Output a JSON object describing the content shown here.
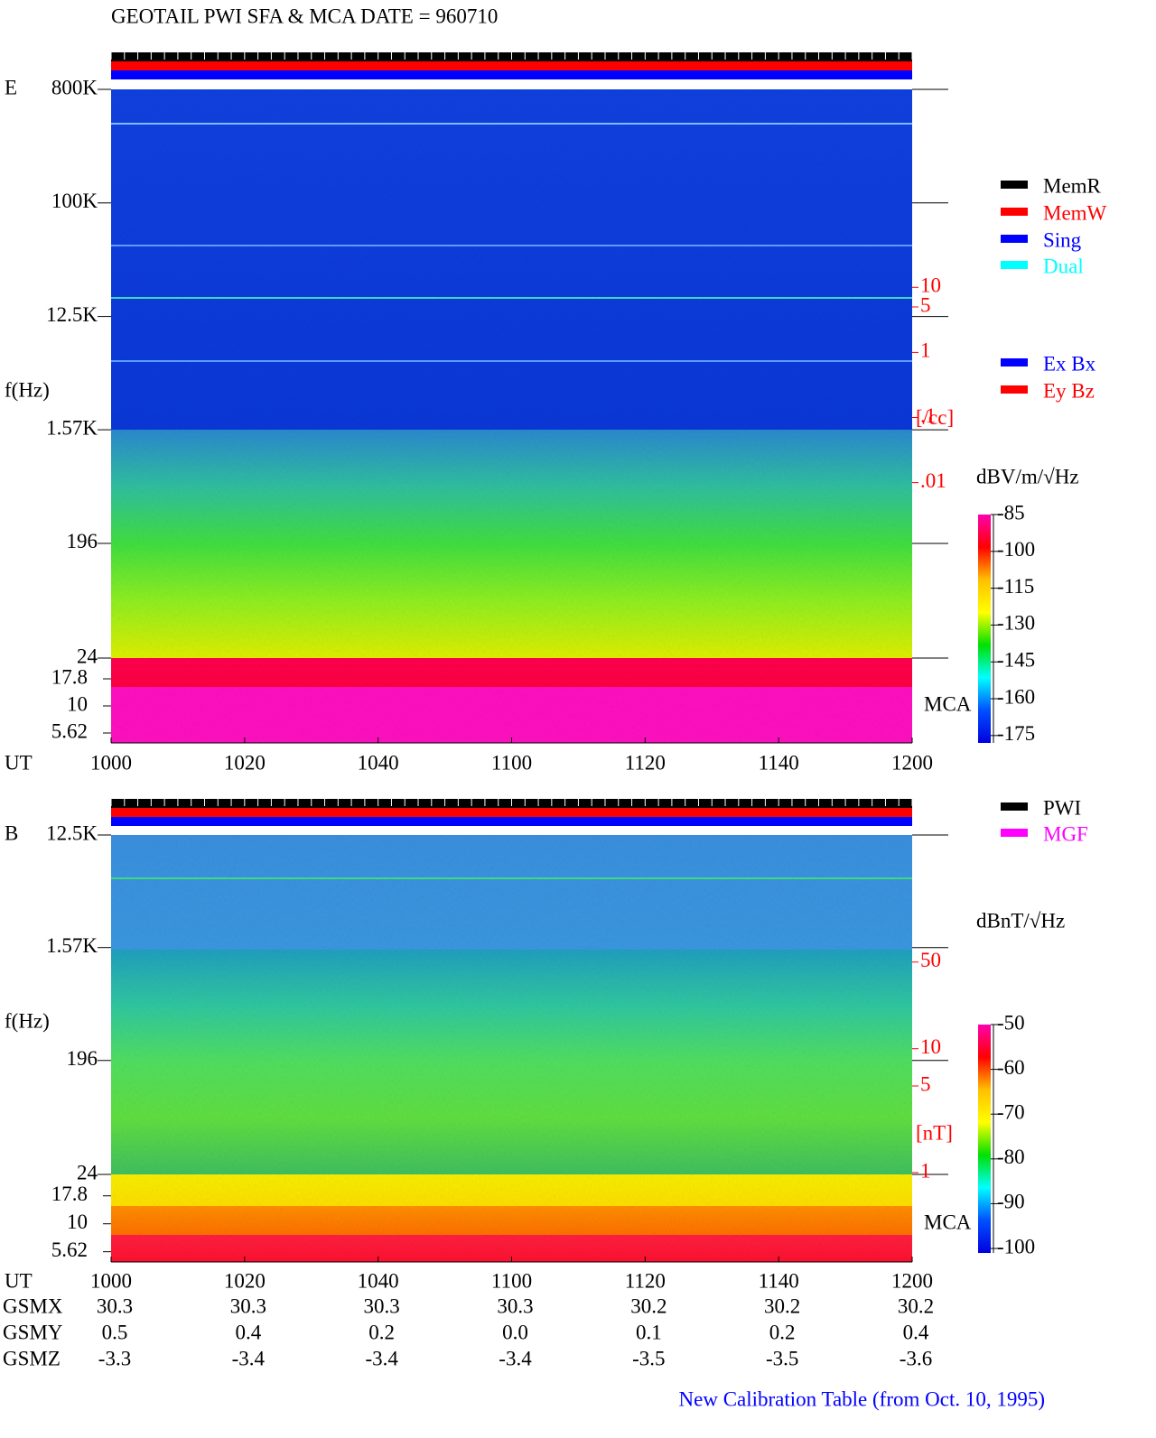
{
  "title": "GEOTAIL  PWI SFA & MCA    DATE = 960710",
  "chart_data": [
    {
      "type": "spectrogram",
      "panel_label": "E",
      "y_label": "f(Hz)",
      "x_label": "UT",
      "x_ticks": [
        "1000",
        "1020",
        "1040",
        "1100",
        "1120",
        "1140",
        "1200"
      ],
      "log_y": true,
      "ylim": [
        24,
        800000
      ],
      "yticks": [
        {
          "value": 800000,
          "label": "800K"
        },
        {
          "value": 100000,
          "label": "100K"
        },
        {
          "value": 12500,
          "label": "12.5K"
        },
        {
          "value": 1570,
          "label": "1.57K"
        },
        196,
        24
      ],
      "mca_label": "MCA",
      "mca_ylim": [
        4.55,
        27.7
      ],
      "mca_yticks": [
        17.8,
        10,
        5.62
      ],
      "y2lim": [
        1e-06,
        11000
      ],
      "y2ticks": [
        10,
        5,
        1,
        {
          "value": 0.1,
          "label": ".1"
        },
        {
          "value": 0.01,
          "label": ".01"
        }
      ],
      "y2_label": "[/cc]",
      "y2_color": "#ff0000",
      "colorbar_label": "dBV/m/√Hz",
      "clim": [
        -178,
        -85
      ],
      "cticks": [
        -85,
        -100,
        -115,
        -130,
        -145,
        -160,
        -175
      ],
      "colormap": [
        "#ff00b0",
        "#ff0000",
        "#ffc000",
        "#ffff00",
        "#00e000",
        "#00ffff",
        "#0050ff",
        "#0000e0"
      ],
      "legend": [
        {
          "name": "MemR",
          "color": "#000000"
        },
        {
          "name": "MemW",
          "color": "#ff0000"
        },
        {
          "name": "Sing",
          "color": "#0000ff"
        },
        {
          "name": "Dual",
          "color": "#00ffff"
        },
        {
          "name": "Ex Bx",
          "color": "#0000ff"
        },
        {
          "name": "Ey Bz",
          "color": "#ff0000"
        }
      ]
    },
    {
      "type": "spectrogram",
      "panel_label": "B",
      "y_label": "f(Hz)",
      "x_label": "UT",
      "x_ticks": [
        "1000",
        "1020",
        "1040",
        "1100",
        "1120",
        "1140",
        "1200"
      ],
      "log_y": true,
      "ylim": [
        24,
        12500
      ],
      "yticks": [
        {
          "value": 12500,
          "label": "12.5K"
        },
        {
          "value": 1570,
          "label": "1.57K"
        },
        196,
        24
      ],
      "mca_label": "MCA",
      "mca_ylim": [
        4.55,
        27.7
      ],
      "mca_yticks": [
        17.8,
        10,
        5.62
      ],
      "y2lim": [
        0.19,
        530
      ],
      "y2ticks": [
        50,
        10,
        5,
        1
      ],
      "y2_label": "[nT]",
      "y2_color": "#ff0000",
      "colorbar_label": "dBnT/√Hz",
      "clim": [
        -101,
        -50
      ],
      "cticks": [
        -50,
        -60,
        -70,
        -80,
        -90,
        -100
      ],
      "colormap": [
        "#ff00b0",
        "#ff0000",
        "#ffc000",
        "#ffff00",
        "#00e000",
        "#00ffff",
        "#0050ff",
        "#0000e0"
      ],
      "legend": [
        {
          "name": "PWI",
          "color": "#000000"
        },
        {
          "name": "MGF",
          "color": "#ff00ff"
        }
      ]
    }
  ],
  "orbit": {
    "rows": [
      {
        "name": "GSMX",
        "values": [
          "30.3",
          "30.3",
          "30.3",
          "30.3",
          "30.2",
          "30.2",
          "30.2"
        ]
      },
      {
        "name": "GSMY",
        "values": [
          "0.5",
          "0.4",
          "0.2",
          "0.0",
          "0.1",
          "0.2",
          "0.4"
        ]
      },
      {
        "name": "GSMZ",
        "values": [
          "-3.3",
          "-3.4",
          "-3.4",
          "-3.4",
          "-3.5",
          "-3.5",
          "-3.6"
        ]
      }
    ]
  },
  "footer": "New Calibration Table (from Oct. 10, 1995)"
}
